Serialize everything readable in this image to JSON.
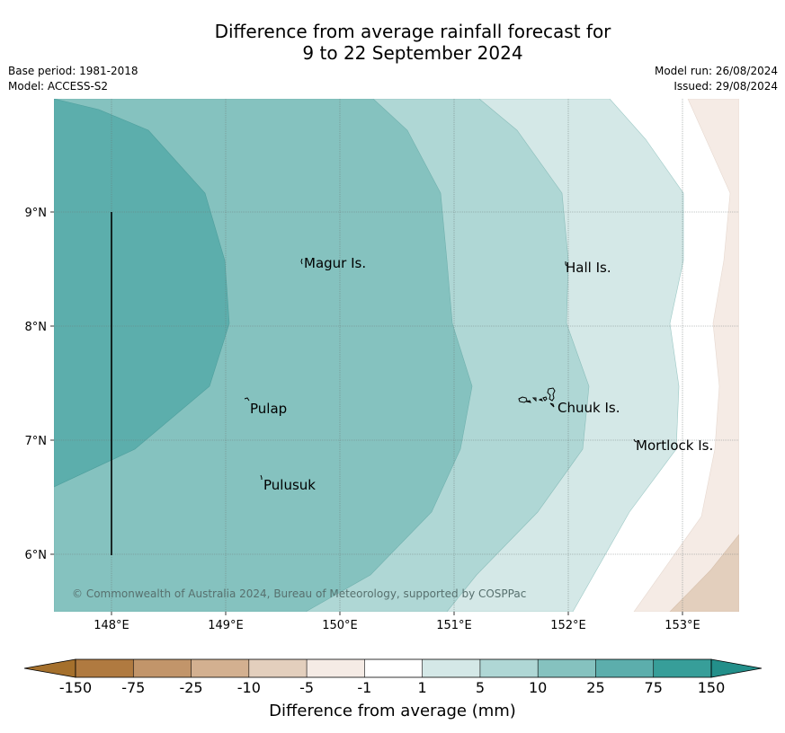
{
  "header": {
    "title_line1": "Difference from average rainfall forecast for",
    "title_line2": "9 to 22 September 2024",
    "base_period": "Base period: 1981-2018",
    "model": "Model: ACCESS-S2",
    "model_run": "Model run: 26/08/2024",
    "issued": "Issued: 29/08/2024"
  },
  "map": {
    "lat_labels": [
      "9°N",
      "8°N",
      "7°N",
      "6°N"
    ],
    "lon_labels": [
      "148°E",
      "149°E",
      "150°E",
      "151°E",
      "152°E",
      "153°E"
    ],
    "places": [
      "Magur Is.",
      "Hall Is.",
      "Pulap",
      "Chuuk Is.",
      "Mortlock Is.",
      "Pulusuk"
    ],
    "copyright": "© Commonwealth of Australia 2024, Bureau of Meteorology, supported by COSPPac"
  },
  "colorbar": {
    "title": "Difference from average (mm)",
    "tick_labels": [
      "-150",
      "-75",
      "-25",
      "-10",
      "-5",
      "-1",
      "1",
      "5",
      "10",
      "25",
      "75",
      "150"
    ],
    "colors": [
      "#b07a40",
      "#c2956a",
      "#d3b090",
      "#e3cfbd",
      "#f5ebe5",
      "#ffffff",
      "#d4e8e7",
      "#afd7d5",
      "#85c2bf",
      "#5caeac",
      "#379e99"
    ],
    "under_color": "#a5702c",
    "over_color": "#238f8a"
  }
}
